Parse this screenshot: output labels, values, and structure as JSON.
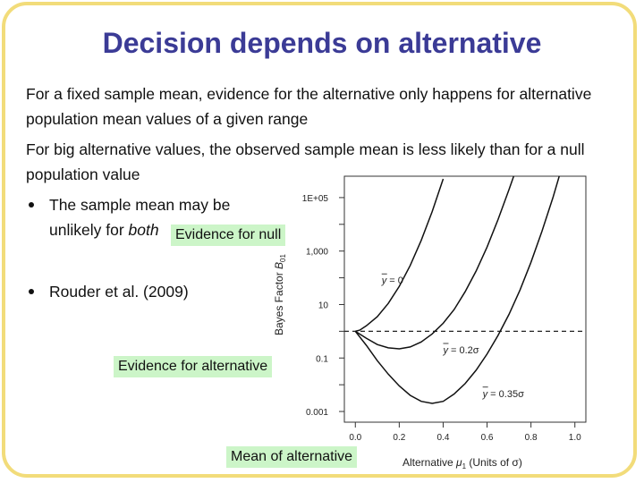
{
  "slide": {
    "title": "Decision depends on alternative",
    "paragraph1": "For a fixed sample mean, evidence for the alternative only happens for alternative population mean values of a given range",
    "paragraph2": "For big alternative values, the observed sample mean is less likely than for a null population value",
    "bullets": [
      {
        "pre": "The sample mean may be",
        "line2_pre": "unlikely for ",
        "line2_em": "both"
      },
      {
        "text": "Rouder et al. (2009)"
      }
    ],
    "callouts": {
      "evidence_null": "Evidence for null",
      "evidence_alternative": "Evidence for alternative",
      "mean_alternative": "Mean of alternative"
    },
    "frame_color": "#f2dc7a",
    "title_color": "#3b3b96",
    "callout_color": "#ccf5c8"
  },
  "chart_data": {
    "type": "line",
    "xlabel_text": "Alternative ",
    "xlabel_mu": "μ",
    "xlabel_sub": "1",
    "xlabel_units": " (Units of σ)",
    "ylabel_text": "Bayes Factor ",
    "ylabel_B": "B",
    "ylabel_sub": "01",
    "x_ticks": [
      "0.0",
      "0.2",
      "0.4",
      "0.6",
      "0.8",
      "1.0"
    ],
    "x_tick_values": [
      0.0,
      0.2,
      0.4,
      0.6,
      0.8,
      1.0
    ],
    "y_ticks": [
      "0.001",
      "0.1",
      "10",
      "1,000",
      "1E+05"
    ],
    "y_tick_values": [
      0.001,
      0.1,
      10,
      1000,
      100000
    ],
    "xlim": [
      -0.05,
      1.05
    ],
    "ylim_log10": [
      -3.4,
      5.8
    ],
    "y_scale": "log",
    "reference_line_y": 1,
    "series": [
      {
        "label_text": "= 0",
        "label_var": "y",
        "points": [
          [
            0.0,
            1.0
          ],
          [
            0.02,
            1.1
          ],
          [
            0.05,
            1.6
          ],
          [
            0.1,
            3.5
          ],
          [
            0.15,
            11
          ],
          [
            0.2,
            48
          ],
          [
            0.25,
            290
          ],
          [
            0.3,
            2500
          ],
          [
            0.35,
            30000
          ],
          [
            0.4,
            500000
          ]
        ],
        "label_pos": [
          0.12,
          60
        ]
      },
      {
        "label_text": "= 0.2σ",
        "label_var": "y",
        "points": [
          [
            0.0,
            1.0
          ],
          [
            0.05,
            0.55
          ],
          [
            0.1,
            0.32
          ],
          [
            0.15,
            0.24
          ],
          [
            0.2,
            0.22
          ],
          [
            0.25,
            0.26
          ],
          [
            0.3,
            0.4
          ],
          [
            0.35,
            0.8
          ],
          [
            0.4,
            2.0
          ],
          [
            0.45,
            6.5
          ],
          [
            0.5,
            30
          ],
          [
            0.55,
            180
          ],
          [
            0.6,
            1400
          ],
          [
            0.65,
            15000
          ],
          [
            0.7,
            200000
          ],
          [
            0.75,
            3000000
          ]
        ],
        "label_pos": [
          0.4,
          0.15
        ]
      },
      {
        "label_text": "= 0.35σ",
        "label_var": "y",
        "points": [
          [
            0.0,
            1.0
          ],
          [
            0.05,
            0.3
          ],
          [
            0.1,
            0.08
          ],
          [
            0.15,
            0.025
          ],
          [
            0.2,
            0.009
          ],
          [
            0.25,
            0.004
          ],
          [
            0.3,
            0.0024
          ],
          [
            0.35,
            0.002
          ],
          [
            0.4,
            0.0024
          ],
          [
            0.45,
            0.0045
          ],
          [
            0.5,
            0.011
          ],
          [
            0.55,
            0.035
          ],
          [
            0.6,
            0.14
          ],
          [
            0.65,
            0.7
          ],
          [
            0.7,
            4.3
          ],
          [
            0.75,
            35
          ],
          [
            0.8,
            380
          ],
          [
            0.85,
            5500
          ],
          [
            0.9,
            100000
          ],
          [
            0.95,
            2500000
          ]
        ],
        "label_pos": [
          0.58,
          0.0035
        ]
      }
    ]
  }
}
